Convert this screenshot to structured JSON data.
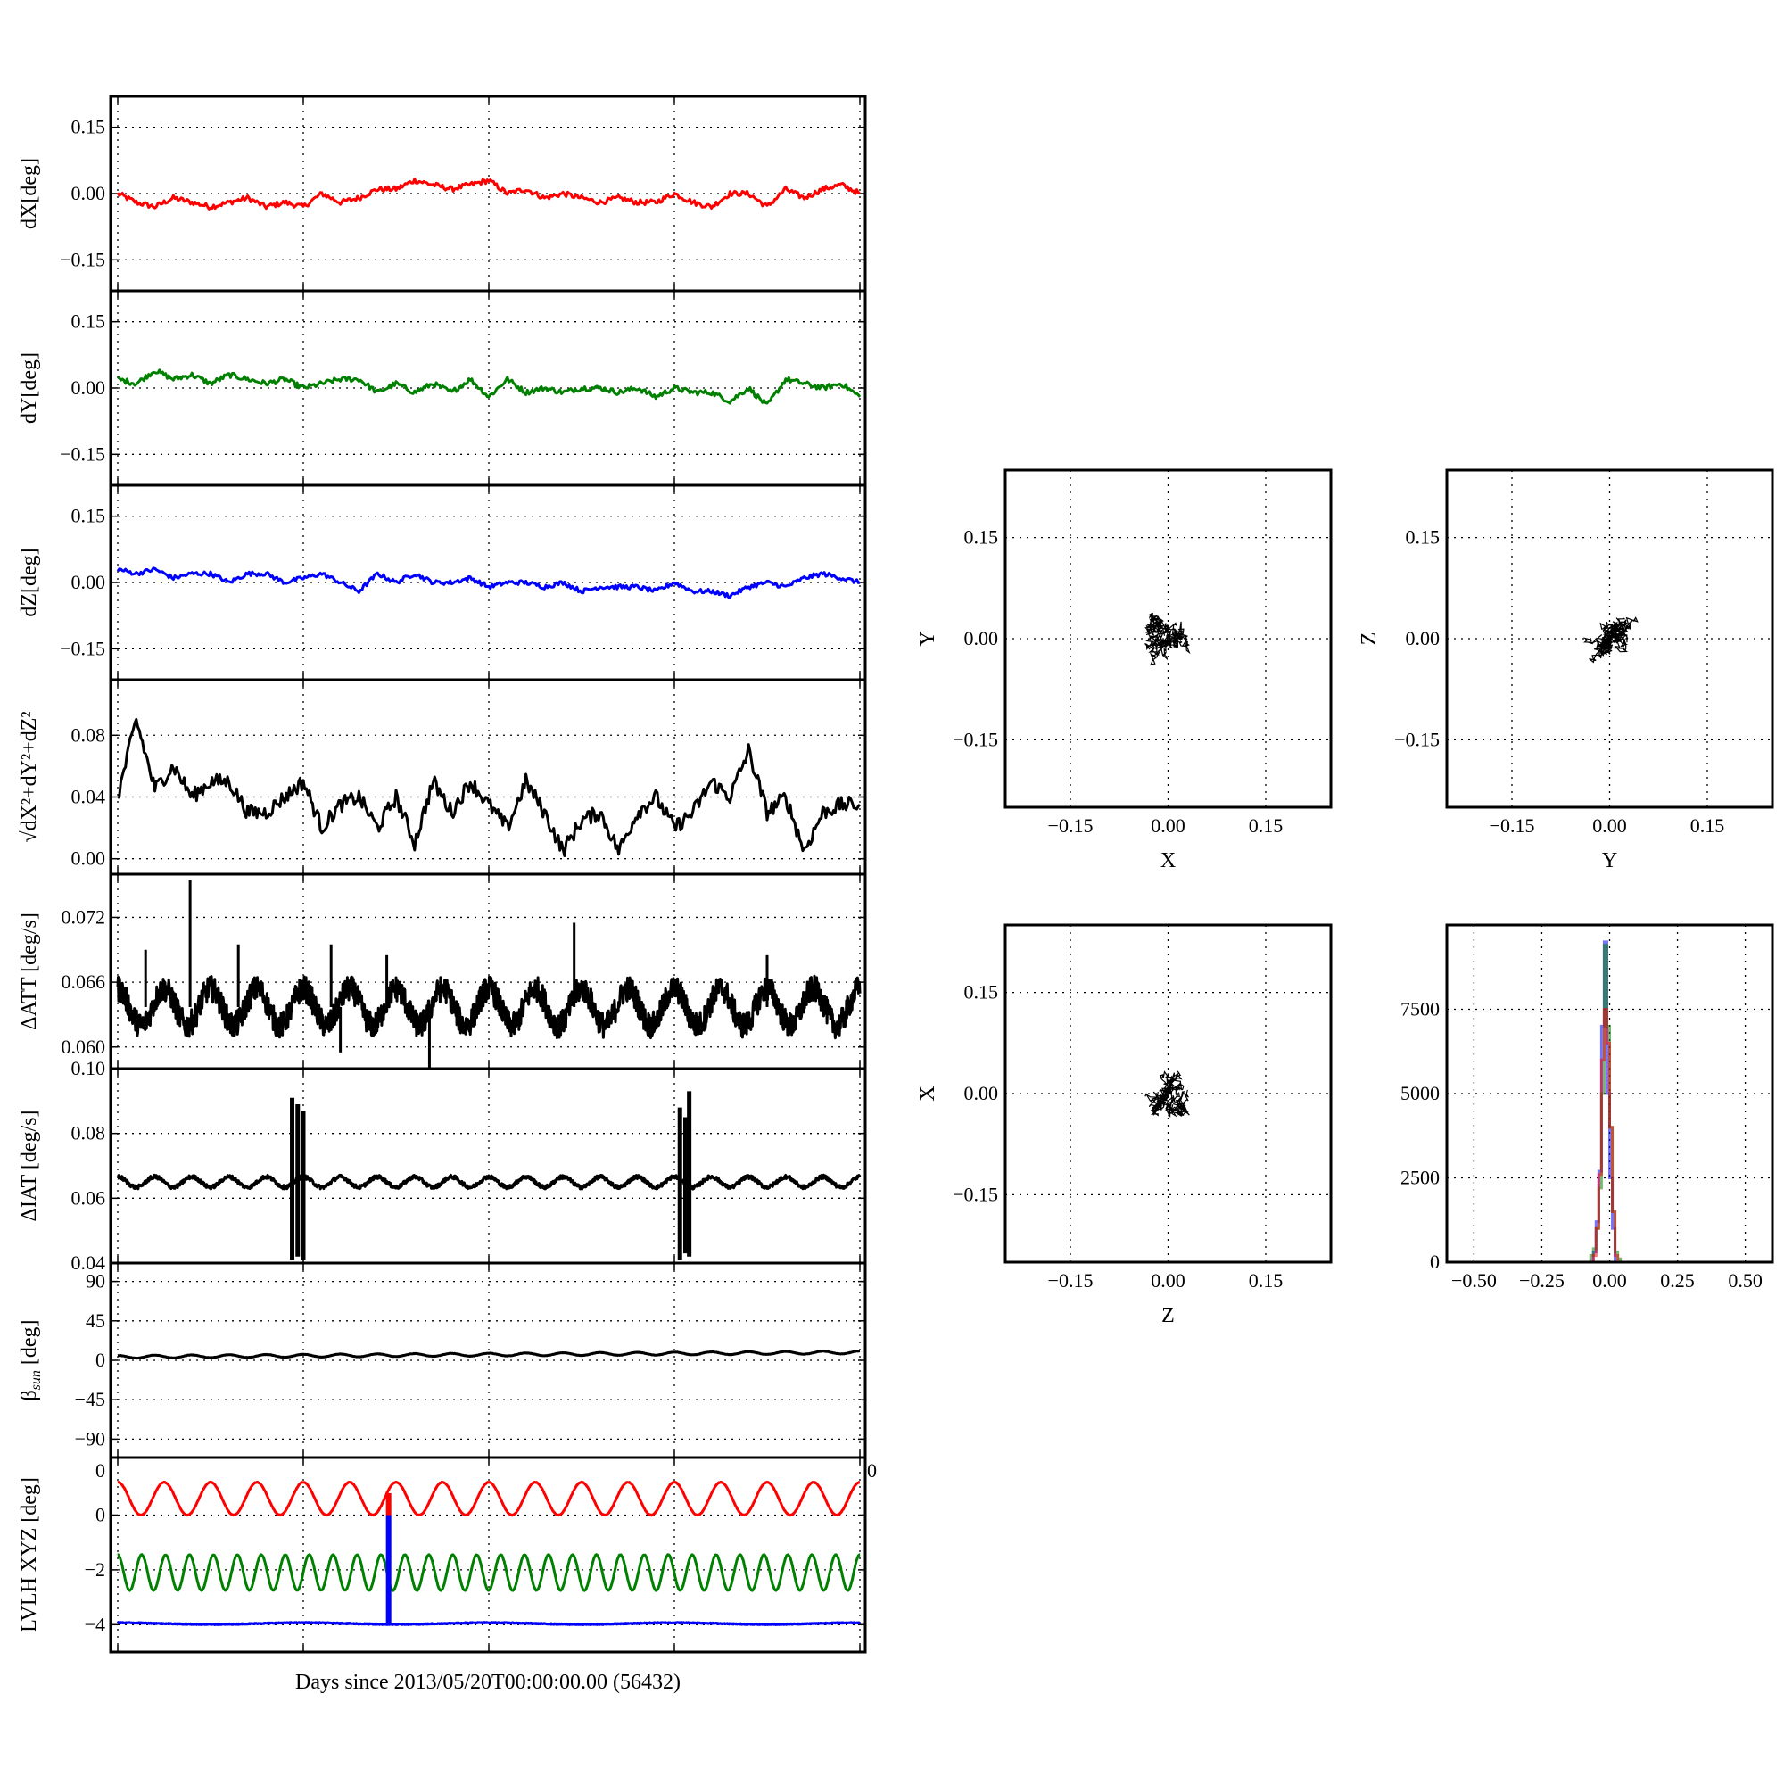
{
  "figure": {
    "xlabel": "Days since 2013/05/20T00:00:00.00 (56432)"
  },
  "chart_data": [
    {
      "type": "line",
      "id": "dX",
      "ylabel": "dX[deg]",
      "xlim": [
        0,
        4
      ],
      "xticks": [
        0,
        1,
        2,
        3,
        4
      ],
      "ylim": [
        -0.22,
        0.22
      ],
      "yticks": [
        0.15,
        0,
        -0.15
      ],
      "yticklabels": [
        "0.15",
        "0.00",
        "−0.15"
      ],
      "grid": true,
      "series": [
        {
          "name": "dX",
          "color": "#ff0000",
          "noise": 0.006,
          "values": [
            0,
            -0.02,
            -0.03,
            -0.01,
            -0.02,
            -0.03,
            -0.02,
            -0.01,
            -0.03,
            -0.02,
            -0.03,
            0,
            -0.02,
            -0.01,
            0.01,
            0.01,
            0.03,
            0.02,
            0.01,
            0.02,
            0.03,
            0,
            0.01,
            -0.01,
            0,
            -0.01,
            -0.02,
            -0.01,
            -0.02,
            -0.02,
            0,
            -0.02,
            -0.03,
            0,
            0,
            -0.03,
            0.01,
            -0.01,
            0.01,
            0.02,
            0
          ]
        }
      ]
    },
    {
      "type": "line",
      "id": "dY",
      "ylabel": "dY[deg]",
      "xlim": [
        0,
        4
      ],
      "xticks": [
        0,
        1,
        2,
        3,
        4
      ],
      "ylim": [
        -0.22,
        0.22
      ],
      "yticks": [
        0.15,
        0,
        -0.15
      ],
      "yticklabels": [
        "0.15",
        "0.00",
        "−0.15"
      ],
      "grid": true,
      "series": [
        {
          "name": "dY",
          "color": "#008000",
          "noise": 0.006,
          "values": [
            0.02,
            0.01,
            0.04,
            0.02,
            0.03,
            0.01,
            0.03,
            0.02,
            0.01,
            0.02,
            0,
            0.01,
            0.02,
            0.02,
            -0.01,
            0.01,
            -0.01,
            0.01,
            -0.01,
            0.02,
            -0.02,
            0.02,
            -0.01,
            0,
            -0.01,
            0,
            0,
            -0.01,
            0,
            -0.02,
            0,
            -0.01,
            -0.01,
            -0.03,
            0,
            -0.04,
            0.02,
            0.01,
            0,
            0.01,
            -0.02
          ]
        }
      ]
    },
    {
      "type": "line",
      "id": "dZ",
      "ylabel": "dZ[deg]",
      "xlim": [
        0,
        4
      ],
      "xticks": [
        0,
        1,
        2,
        3,
        4
      ],
      "ylim": [
        -0.22,
        0.22
      ],
      "yticks": [
        0.15,
        0,
        -0.15
      ],
      "yticklabels": [
        "0.15",
        "0.00",
        "−0.15"
      ],
      "grid": true,
      "series": [
        {
          "name": "dZ",
          "color": "#0000ff",
          "noise": 0.005,
          "values": [
            0.03,
            0.02,
            0.03,
            0.01,
            0.02,
            0.02,
            0,
            0.02,
            0.02,
            0,
            0.01,
            0.02,
            0,
            -0.02,
            0.02,
            0,
            0.02,
            0,
            0,
            0.01,
            -0.01,
            0,
            0,
            -0.01,
            0,
            -0.02,
            -0.01,
            -0.01,
            -0.01,
            -0.02,
            0,
            -0.02,
            -0.02,
            -0.03,
            -0.01,
            0,
            -0.01,
            0.01,
            0.02,
            0.01,
            0
          ]
        }
      ]
    },
    {
      "type": "line",
      "id": "dR",
      "ylabel": "√dX²+dY²+dZ²",
      "xlim": [
        0,
        4
      ],
      "xticks": [
        0,
        1,
        2,
        3,
        4
      ],
      "ylim": [
        -0.01,
        0.116
      ],
      "yticks": [
        0.08,
        0.04,
        0
      ],
      "yticklabels": [
        "0.08",
        "0.04",
        "0.00"
      ],
      "grid": true,
      "series": [
        {
          "name": "norm",
          "color": "#000000",
          "noise": 0.005,
          "values": [
            0.04,
            0.09,
            0.045,
            0.06,
            0.04,
            0.05,
            0.05,
            0.03,
            0.03,
            0.04,
            0.05,
            0.02,
            0.035,
            0.04,
            0.02,
            0.04,
            0.01,
            0.05,
            0.03,
            0.05,
            0.035,
            0.02,
            0.05,
            0.03,
            0.005,
            0.025,
            0.03,
            0.005,
            0.03,
            0.04,
            0.02,
            0.03,
            0.05,
            0.04,
            0.07,
            0.03,
            0.04,
            0.005,
            0.03,
            0.035,
            0.035
          ]
        }
      ]
    },
    {
      "type": "line",
      "id": "dATT",
      "ylabel": "ΔATT [deg/s]",
      "xlim": [
        0,
        4
      ],
      "xticks": [
        0,
        1,
        2,
        3,
        4
      ],
      "ylim": [
        0.058,
        0.076
      ],
      "yticks": [
        0.072,
        0.066,
        0.06
      ],
      "yticklabels": [
        "0.072",
        "0.066",
        "0.060"
      ],
      "grid": true,
      "series": [
        {
          "name": "dATT",
          "color": "#000000",
          "sinusoid": {
            "mean": 0.0637,
            "amplitude": 0.0017,
            "period_days": 0.25
          },
          "noise": 0.0012,
          "spikes": [
            [
              0.15,
              0.069
            ],
            [
              0.39,
              0.0755
            ],
            [
              0.65,
              0.0695
            ],
            [
              1.15,
              0.0695
            ],
            [
              1.2,
              0.0595
            ],
            [
              1.45,
              0.0685
            ],
            [
              1.68,
              0.058
            ],
            [
              2.46,
              0.0715
            ],
            [
              3.5,
              0.0685
            ]
          ]
        }
      ]
    },
    {
      "type": "line",
      "id": "dIAT",
      "ylabel": "ΔIAT [deg/s]",
      "xlim": [
        0,
        4
      ],
      "xticks": [
        0,
        1,
        2,
        3,
        4
      ],
      "ylim": [
        0.04,
        0.1
      ],
      "yticks": [
        0.1,
        0.08,
        0.06,
        0.04
      ],
      "yticklabels": [
        "0.10",
        "0.08",
        "0.06",
        "0.04"
      ],
      "grid": true,
      "series": [
        {
          "name": "dIAT",
          "color": "#000000",
          "sinusoid": {
            "mean": 0.065,
            "amplitude": 0.0016,
            "period_days": 0.2
          },
          "noise": 0.0006,
          "bursts": [
            [
              0.94,
              0.041,
              0.091
            ],
            [
              0.97,
              0.042,
              0.089
            ],
            [
              1.0,
              0.041,
              0.087
            ],
            [
              3.03,
              0.041,
              0.088
            ],
            [
              3.06,
              0.043,
              0.085
            ],
            [
              3.08,
              0.042,
              0.093
            ]
          ]
        }
      ]
    },
    {
      "type": "line",
      "id": "beta",
      "ylabel": "β",
      "ylabel_sub": "sun",
      "ylabel_suffix": " [deg]",
      "xlim": [
        0,
        4
      ],
      "xticks": [
        0,
        1,
        2,
        3,
        4
      ],
      "ylim": [
        -111,
        111
      ],
      "yticks": [
        90,
        45,
        0,
        -45,
        -90
      ],
      "yticklabels": [
        "90",
        "45",
        "0",
        "−45",
        "−90"
      ],
      "grid": true,
      "series": [
        {
          "name": "beta_sun",
          "color": "#000000",
          "sinusoid": {
            "mean": 4,
            "mean_end": 9,
            "amplitude": 1.6,
            "period_days": 0.2
          },
          "noise": 0.2
        }
      ]
    },
    {
      "type": "line",
      "id": "lvlh",
      "ylabel": "LVLH XYZ [deg]",
      "xlim": [
        0,
        4
      ],
      "xticks": [
        0,
        1,
        2,
        3,
        4
      ],
      "ylim": [
        -5,
        2.1
      ],
      "yticks": [
        0,
        -2,
        -4
      ],
      "yticklabels": [
        "0",
        "−2",
        "−4"
      ],
      "extra_labels": {
        "top_left": "0",
        "top_right": "0"
      },
      "grid": true,
      "series": [
        {
          "name": "LVLH X",
          "color": "#ff0000",
          "sinusoid": {
            "mean": 0.6,
            "amplitude": 0.6,
            "period_days": 0.25
          },
          "noise": 0.01,
          "vline": [
            1.46,
            0,
            0.8
          ]
        },
        {
          "name": "LVLH Y",
          "color": "#008000",
          "sinusoid": {
            "mean": -2.1,
            "amplitude": 0.65,
            "period_days": 0.129
          },
          "noise": 0.01
        },
        {
          "name": "LVLH Z",
          "color": "#0000ff",
          "sinusoid": {
            "mean": -3.96,
            "amplitude": 0.03,
            "period_days": 1.0
          },
          "noise": 0.015,
          "vline": [
            1.46,
            0,
            -4
          ]
        }
      ]
    },
    {
      "type": "scatter",
      "id": "xy",
      "xlabel": "X",
      "ylabel": "Y",
      "x_series": "dX",
      "y_series": "dY",
      "xlim": [
        -0.25,
        0.25
      ],
      "ylim": [
        -0.25,
        0.25
      ],
      "ticks": [
        -0.15,
        0,
        0.15
      ],
      "ticklabels": [
        "−0.15",
        "0.00",
        "0.15"
      ],
      "grid": true
    },
    {
      "type": "scatter",
      "id": "yz",
      "xlabel": "Y",
      "ylabel": "Z",
      "x_series": "dY",
      "y_series": "dZ",
      "xlim": [
        -0.25,
        0.25
      ],
      "ylim": [
        -0.25,
        0.25
      ],
      "ticks": [
        -0.15,
        0,
        0.15
      ],
      "ticklabels": [
        "−0.15",
        "0.00",
        "0.15"
      ],
      "grid": true
    },
    {
      "type": "scatter",
      "id": "zx",
      "xlabel": "Z",
      "ylabel": "X",
      "x_series": "dZ",
      "y_series": "dX",
      "xlim": [
        -0.25,
        0.25
      ],
      "ylim": [
        -0.25,
        0.25
      ],
      "ticks": [
        -0.15,
        0,
        0.15
      ],
      "ticklabels": [
        "−0.15",
        "0.00",
        "0.15"
      ],
      "grid": true
    },
    {
      "type": "histogram",
      "id": "hist",
      "xlim": [
        -0.6,
        0.6
      ],
      "ylim": [
        0,
        10000
      ],
      "xticks": [
        -0.5,
        -0.25,
        0,
        0.25,
        0.5
      ],
      "xticklabels": [
        "−0.50",
        "−0.25",
        "0.00",
        "0.25",
        "0.50"
      ],
      "yticks": [
        0,
        2500,
        5000,
        7500
      ],
      "yticklabels": [
        "0",
        "2500",
        "5000",
        "7500"
      ],
      "grid": true,
      "bin_edges": [
        -0.07,
        -0.06,
        -0.05,
        -0.04,
        -0.03,
        -0.02,
        -0.01,
        0,
        0.01,
        0.02,
        0.03,
        0.04,
        0.05,
        0.06,
        0.07,
        0.08
      ],
      "series": [
        {
          "name": "dZ",
          "color": "#0000ff",
          "counts": [
            0,
            300,
            1200,
            2700,
            7000,
            9500,
            5000,
            2500,
            1000,
            0,
            0,
            0,
            0,
            0,
            0
          ]
        },
        {
          "name": "dY",
          "color": "#008000",
          "counts": [
            200,
            400,
            1000,
            2200,
            5000,
            9400,
            7000,
            4000,
            1500,
            300,
            100,
            0,
            0,
            0,
            0
          ]
        },
        {
          "name": "dX",
          "color": "#ff0000",
          "counts": [
            0,
            200,
            1000,
            2600,
            6000,
            7500,
            6500,
            4000,
            1500,
            200,
            0,
            0,
            0,
            0,
            0
          ]
        }
      ]
    }
  ]
}
